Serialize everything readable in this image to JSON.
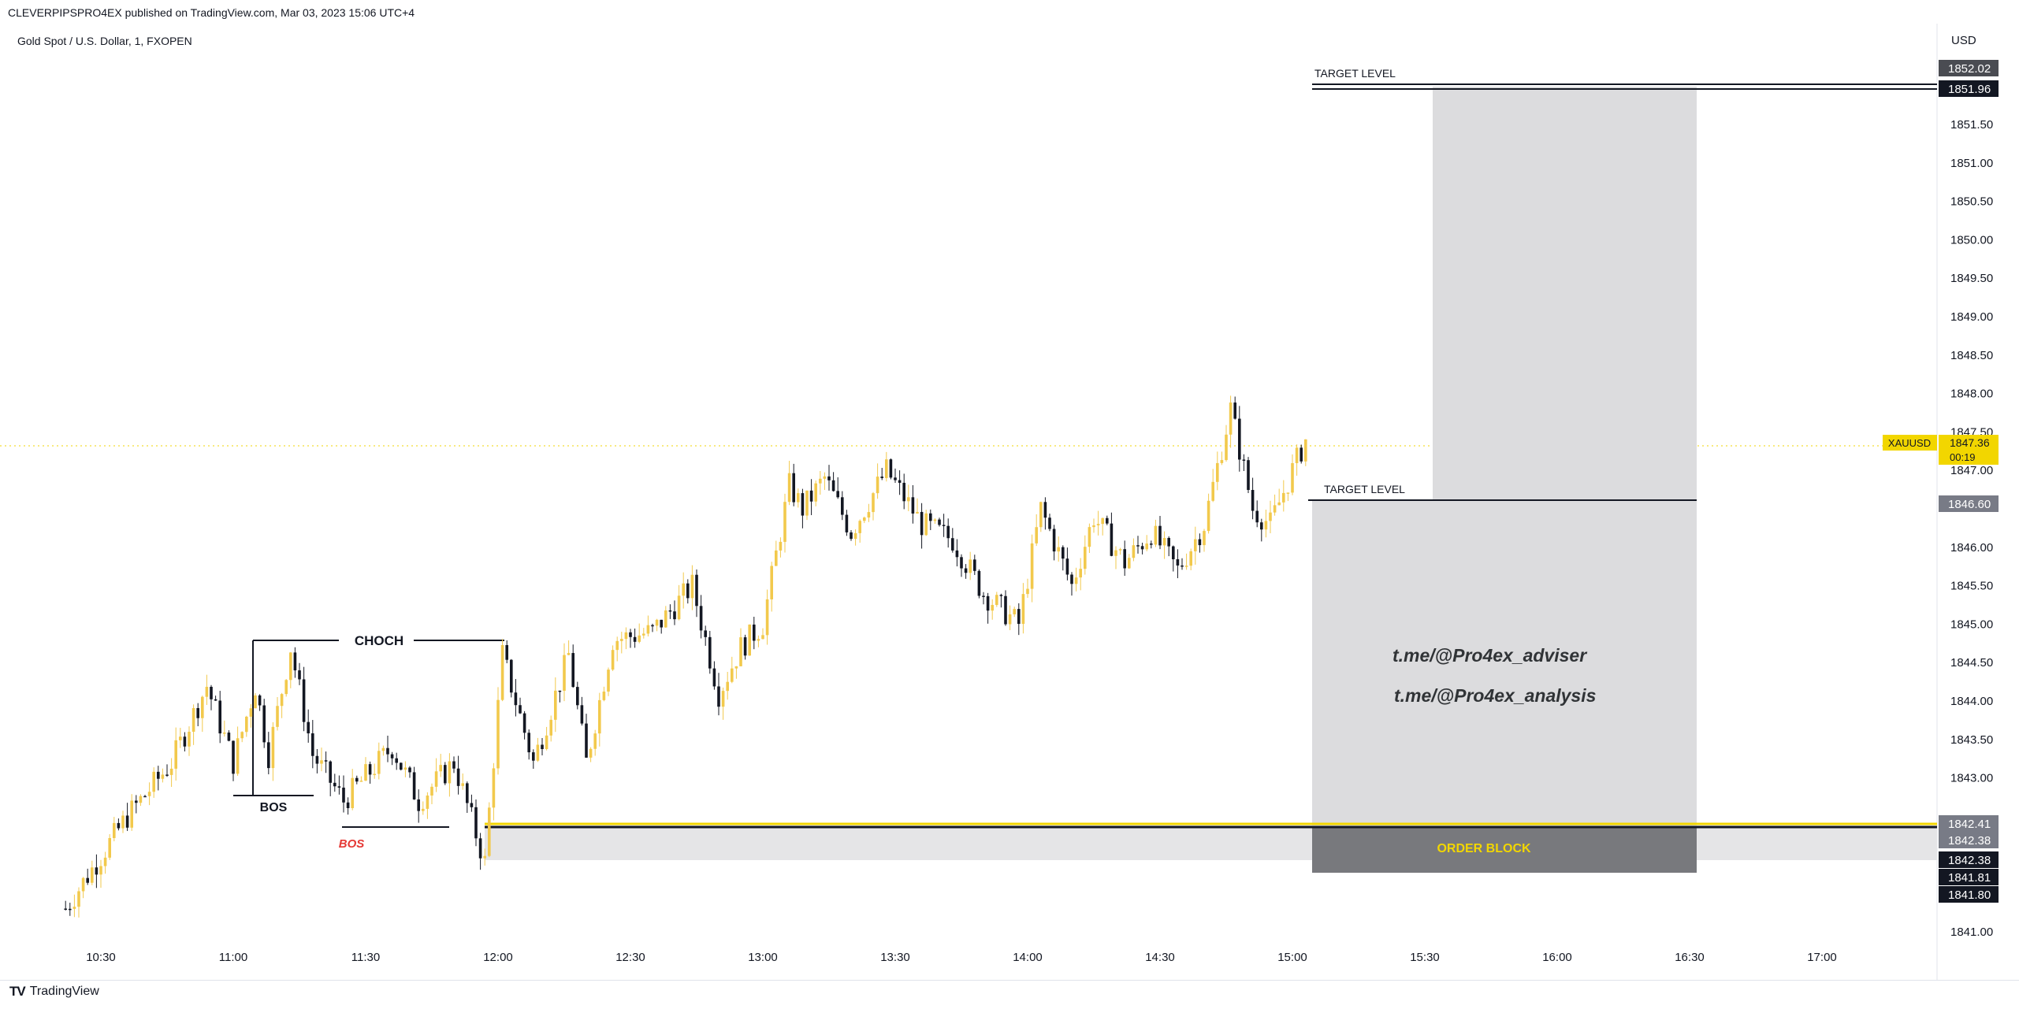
{
  "header": {
    "published": "CLEVERPIPSPRO4EX published on TradingView.com, Mar 03, 2023 15:06 UTC+4",
    "symbol_title": "Gold Spot / U.S. Dollar, 1, FXOPEN",
    "brand": "TradingView",
    "brand_logo": "TV"
  },
  "colors": {
    "bull": "#f2c94c",
    "bear": "#131722",
    "zone": "#dcdcde",
    "order_block": "#78797d",
    "yellow": "#f2d600",
    "red": "#e53935"
  },
  "chart_data": {
    "type": "candlestick",
    "currency": "USD",
    "symbol_tag": "XAUUSD",
    "last_price": "1847.36",
    "countdown": "00:19",
    "ylim": [
      1840.9,
      1852.4
    ],
    "y_ticks": [
      "1841.00",
      "1843.00",
      "1843.50",
      "1844.00",
      "1844.50",
      "1845.00",
      "1845.50",
      "1846.00",
      "1847.00",
      "1847.50",
      "1848.00",
      "1848.50",
      "1849.00",
      "1849.50",
      "1850.00",
      "1850.50",
      "1851.00",
      "1851.50"
    ],
    "x_ticks": [
      "10:30",
      "11:00",
      "11:30",
      "12:00",
      "12:30",
      "13:00",
      "13:30",
      "14:00",
      "14:30",
      "15:00",
      "15:30",
      "16:00",
      "16:30",
      "17:00"
    ],
    "price_tags": [
      {
        "price": 1852.02,
        "label": "1852.02",
        "style": "dark"
      },
      {
        "price": 1851.96,
        "label": "1851.96",
        "style": "black"
      },
      {
        "price": 1846.6,
        "label": "1846.60",
        "style": "gray"
      },
      {
        "price": 1842.41,
        "label": "1842.41",
        "style": "gray"
      },
      {
        "price": 1842.38,
        "label": "1842.38",
        "style": "gray"
      },
      {
        "price": 1842.2,
        "label": "1842.38",
        "style": "black"
      },
      {
        "price": 1842.0,
        "label": "1841.81",
        "style": "black"
      },
      {
        "price": 1841.8,
        "label": "1841.80",
        "style": "black"
      }
    ],
    "anchors": [
      {
        "t": "10:22",
        "p": 1841.3
      },
      {
        "t": "10:36",
        "p": 1842.5
      },
      {
        "t": "10:46",
        "p": 1843.2
      },
      {
        "t": "10:54",
        "p": 1844.2
      },
      {
        "t": "11:00",
        "p": 1843.2
      },
      {
        "t": "11:05",
        "p": 1844.2
      },
      {
        "t": "11:08",
        "p": 1843.3
      },
      {
        "t": "11:13",
        "p": 1844.7
      },
      {
        "t": "11:18",
        "p": 1843.3
      },
      {
        "t": "11:25",
        "p": 1842.7
      },
      {
        "t": "11:36",
        "p": 1843.4
      },
      {
        "t": "11:42",
        "p": 1842.7
      },
      {
        "t": "11:50",
        "p": 1843.2
      },
      {
        "t": "11:57",
        "p": 1841.9
      },
      {
        "t": "12:01",
        "p": 1844.6
      },
      {
        "t": "12:08",
        "p": 1843.2
      },
      {
        "t": "12:16",
        "p": 1844.6
      },
      {
        "t": "12:20",
        "p": 1843.2
      },
      {
        "t": "12:26",
        "p": 1844.8
      },
      {
        "t": "12:35",
        "p": 1844.9
      },
      {
        "t": "12:44",
        "p": 1845.5
      },
      {
        "t": "12:50",
        "p": 1844.1
      },
      {
        "t": "12:55",
        "p": 1844.7
      },
      {
        "t": "13:00",
        "p": 1845.0
      },
      {
        "t": "13:06",
        "p": 1846.8
      },
      {
        "t": "13:09",
        "p": 1846.5
      },
      {
        "t": "13:14",
        "p": 1846.9
      },
      {
        "t": "13:20",
        "p": 1846.2
      },
      {
        "t": "13:28",
        "p": 1847.0
      },
      {
        "t": "13:36",
        "p": 1846.3
      },
      {
        "t": "13:43",
        "p": 1846.1
      },
      {
        "t": "13:50",
        "p": 1845.4
      },
      {
        "t": "13:58",
        "p": 1845.0
      },
      {
        "t": "14:03",
        "p": 1846.5
      },
      {
        "t": "14:10",
        "p": 1845.5
      },
      {
        "t": "14:15",
        "p": 1846.4
      },
      {
        "t": "14:22",
        "p": 1845.8
      },
      {
        "t": "14:28",
        "p": 1846.2
      },
      {
        "t": "14:34",
        "p": 1845.7
      },
      {
        "t": "14:40",
        "p": 1846.3
      },
      {
        "t": "14:46",
        "p": 1847.8
      },
      {
        "t": "14:51",
        "p": 1846.5
      },
      {
        "t": "14:55",
        "p": 1846.3
      },
      {
        "t": "15:00",
        "p": 1847.0
      },
      {
        "t": "15:03",
        "p": 1847.4
      }
    ]
  },
  "annotations": {
    "choch": "CHOCH",
    "bos": "BOS",
    "bos_red": "BOS",
    "target_level": "TARGET LEVEL",
    "target_level_top": "TARGET LEVEL",
    "order_block": "ORDER BLOCK",
    "link1": "t.me/@Pro4ex_adviser",
    "link2": "t.me/@Pro4ex_analysis"
  }
}
